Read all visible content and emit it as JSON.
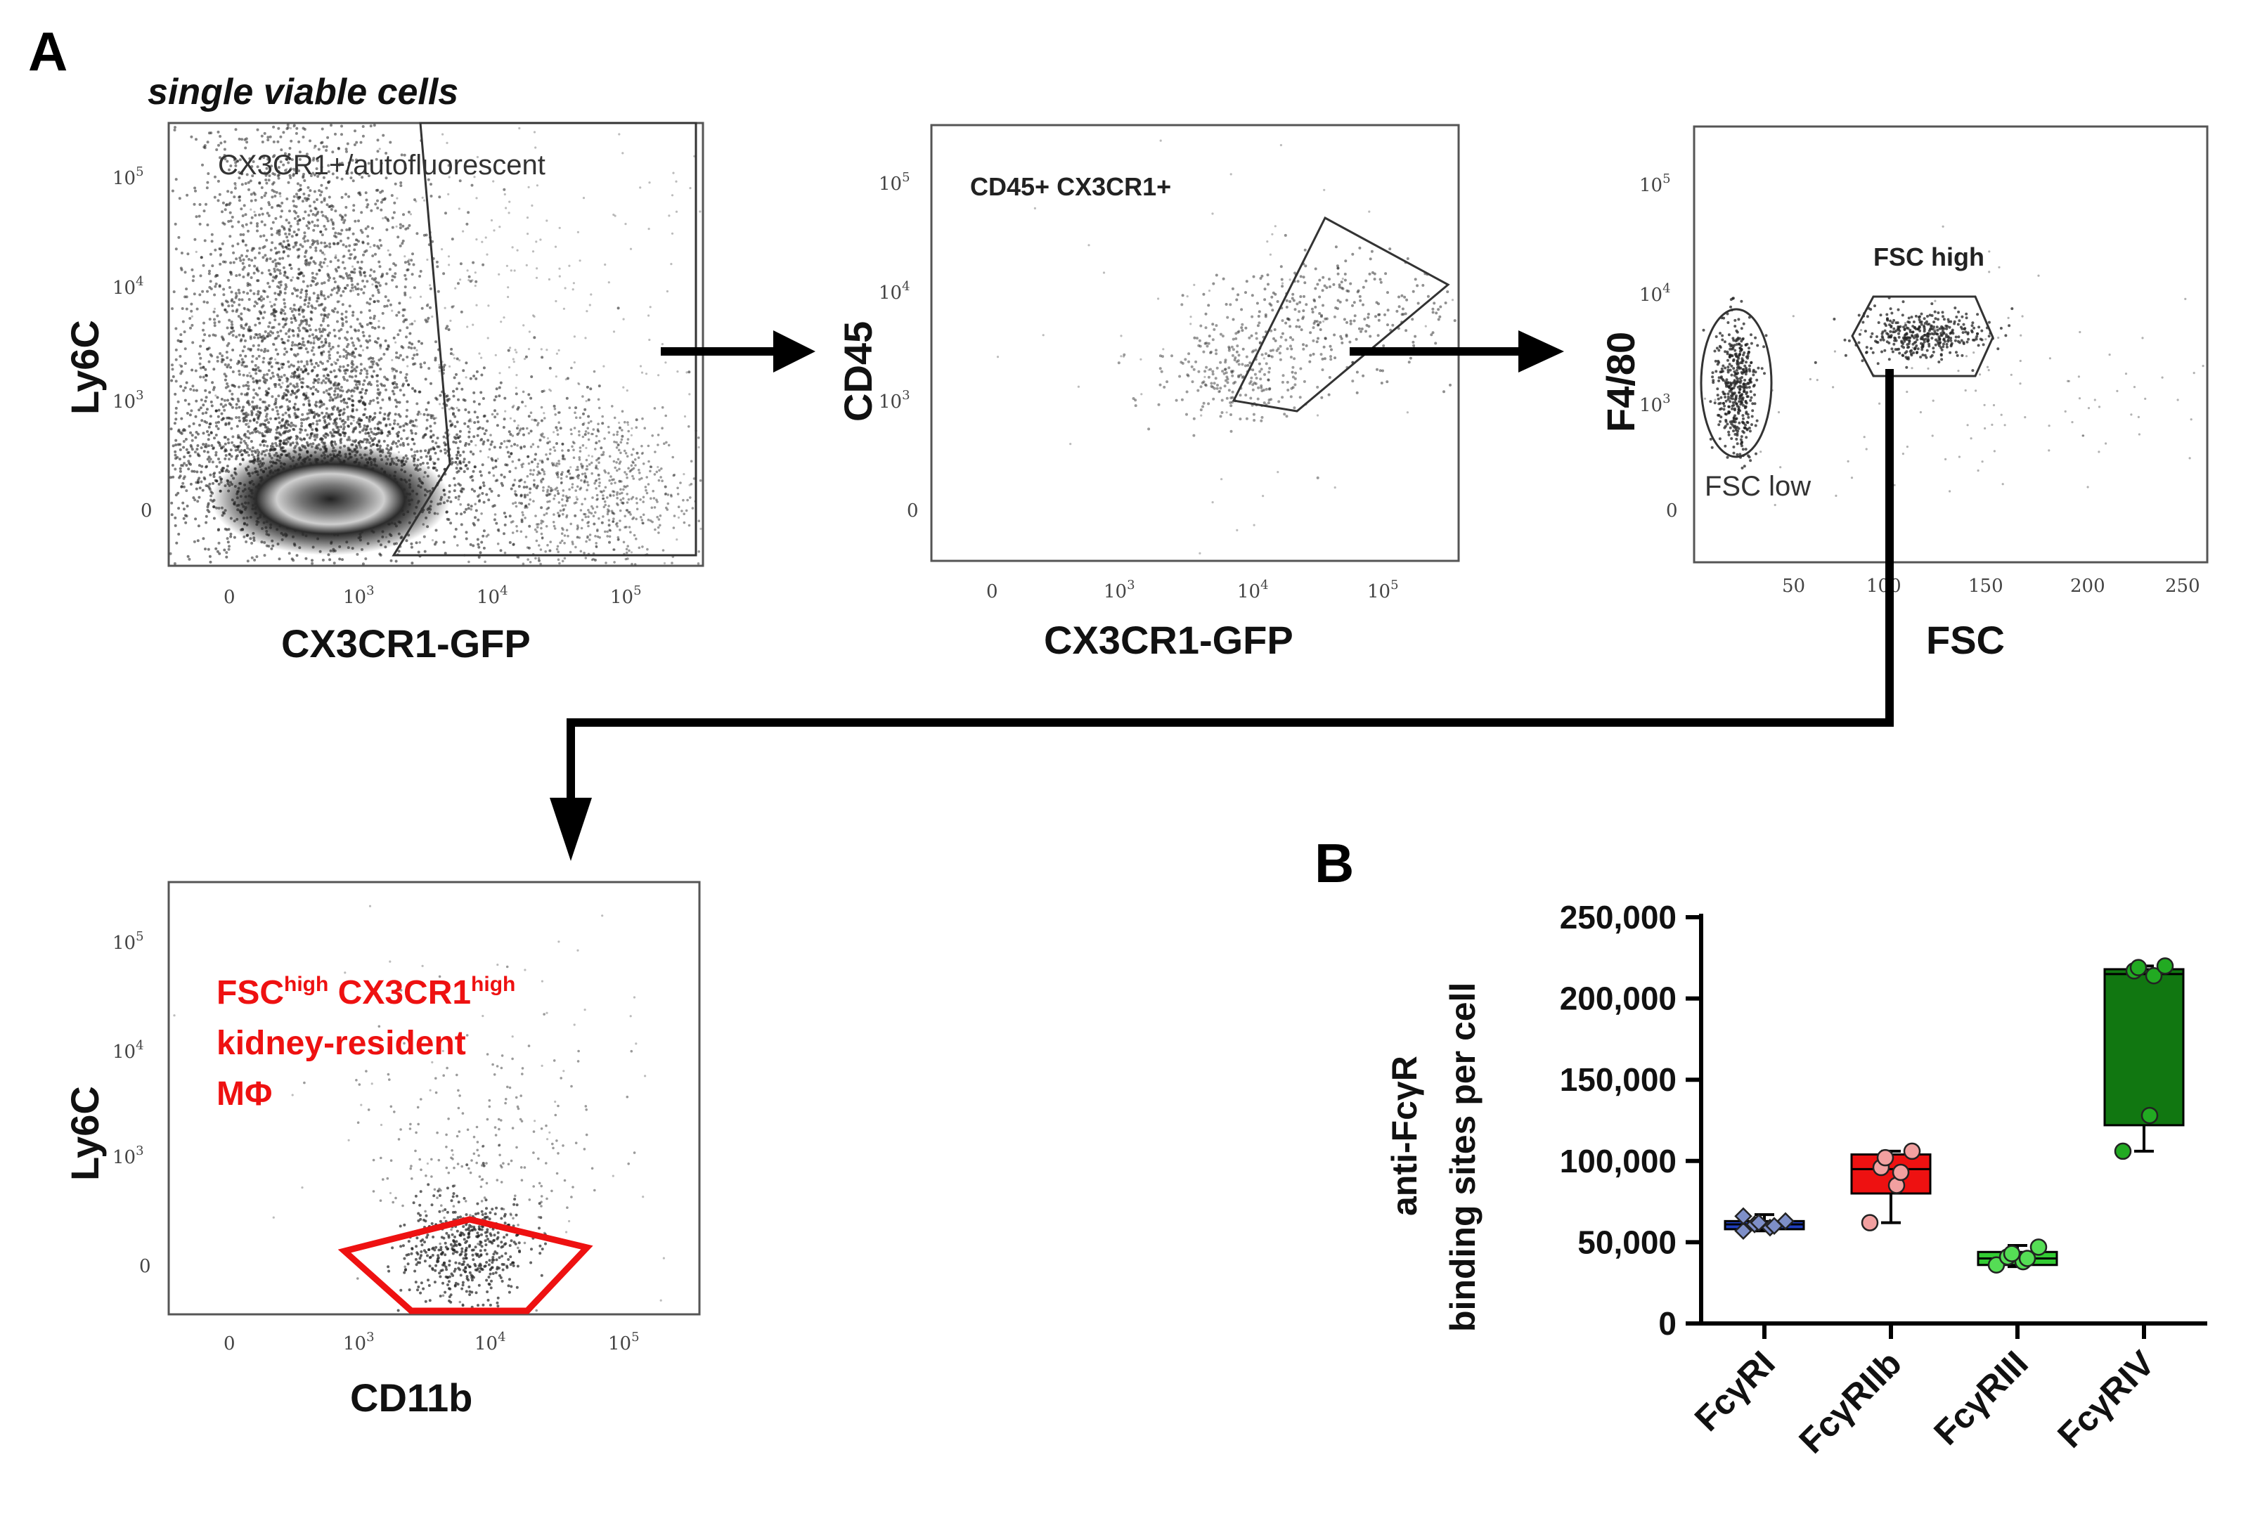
{
  "panel_a": {
    "letter": "A",
    "subtitle": "single viable cells",
    "plot1": {
      "gate_label": "CX3CR1+/autofluorescent",
      "x_label": "CX3CR1-GFP",
      "y_label": "Ly6C",
      "x_ticks": [
        "0",
        "10",
        "10",
        "10"
      ],
      "x_tick_exps": [
        "",
        "3",
        "4",
        "5"
      ],
      "y_ticks": [
        "0",
        "10",
        "10",
        "10"
      ],
      "y_tick_exps": [
        "",
        "3",
        "4",
        "5"
      ]
    },
    "plot2": {
      "gate_label": "CD45+ CX3CR1+",
      "x_label": "CX3CR1-GFP",
      "y_label": "CD45",
      "x_ticks": [
        "0",
        "10",
        "10",
        "10"
      ],
      "x_tick_exps": [
        "",
        "3",
        "4",
        "5"
      ],
      "y_ticks": [
        "0",
        "10",
        "10",
        "10"
      ],
      "y_tick_exps": [
        "",
        "3",
        "4",
        "5"
      ]
    },
    "plot3": {
      "gate_high_label": "FSC high",
      "gate_low_label": "FSC low",
      "x_label": "FSC",
      "y_label": "F4/80",
      "x_ticks": [
        "50",
        "100",
        "150",
        "200",
        "250"
      ],
      "y_ticks": [
        "0",
        "10",
        "10",
        "10"
      ],
      "y_tick_exps": [
        "",
        "3",
        "4",
        "5"
      ]
    },
    "plot4": {
      "label_line1_a": "FSC",
      "label_line1_a_sup": "high",
      "label_line1_b": " CX3CR1",
      "label_line1_b_sup": "high",
      "label_line2": "kidney-resident",
      "label_line3": "MΦ",
      "x_label": "CD11b",
      "y_label": "Ly6C",
      "x_ticks": [
        "0",
        "10",
        "10",
        "10"
      ],
      "x_tick_exps": [
        "",
        "3",
        "4",
        "5"
      ],
      "y_ticks": [
        "0",
        "10",
        "10",
        "10"
      ],
      "y_tick_exps": [
        "",
        "3",
        "4",
        "5"
      ]
    },
    "colors": {
      "gate_red": "#ee1111",
      "dots": "#222222"
    }
  },
  "panel_b": {
    "letter": "B",
    "y_label_line1": "anti-FcγR",
    "y_label_line2": "binding sites per cell",
    "y_tick_labels": [
      "0",
      "50,000",
      "100,000",
      "150,000",
      "200,000",
      "250,000"
    ],
    "chart_data": {
      "type": "box",
      "categories": [
        "FcγRI",
        "FcγRIIb",
        "FcγRIII",
        "FcγRIV"
      ],
      "ylim": [
        0,
        250000
      ],
      "yticks": [
        0,
        50000,
        100000,
        150000,
        200000,
        250000
      ],
      "series": [
        {
          "category": "FcγRI",
          "color": "#1f3fbf",
          "point_color": "#7e8fc8",
          "min": 57000,
          "q1": 58000,
          "median": 61000,
          "q3": 63000,
          "max": 67000,
          "points": [
            57000,
            59000,
            60000,
            61000,
            62000,
            63000,
            66000
          ]
        },
        {
          "category": "FcγRIIb",
          "color": "#ee1111",
          "point_color": "#f2a0a0",
          "min": 62000,
          "q1": 80000,
          "median": 95000,
          "q3": 104000,
          "max": 106000,
          "points": [
            62000,
            85000,
            93000,
            96000,
            102000,
            106000
          ]
        },
        {
          "category": "FcγRIII",
          "color": "#33cc33",
          "point_color": "#55dd55",
          "min": 35000,
          "q1": 36000,
          "median": 40000,
          "q3": 44000,
          "max": 48000,
          "points": [
            36000,
            38000,
            40000,
            41000,
            43000,
            47000
          ]
        },
        {
          "category": "FcγRIV",
          "color": "#117711",
          "point_color": "#22aa22",
          "min": 106000,
          "q1": 122000,
          "median": 215000,
          "q3": 218000,
          "max": 220000,
          "points": [
            106000,
            128000,
            214000,
            217000,
            219000,
            220000
          ]
        }
      ]
    }
  }
}
